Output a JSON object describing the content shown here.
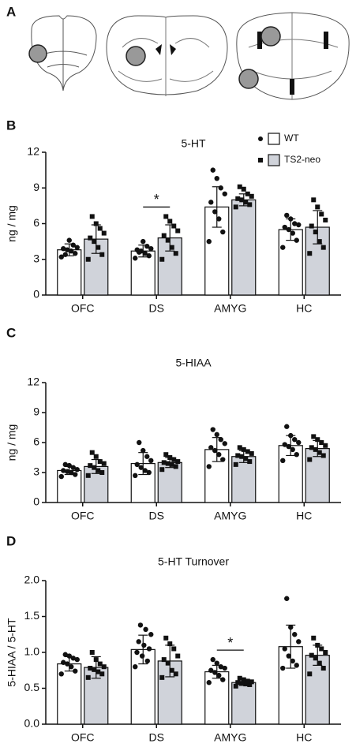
{
  "panel_a": {
    "label": "A"
  },
  "chart_data": [
    {
      "type": "bar",
      "panel": "B",
      "title": "5-HT",
      "ylabel": "ng / mg",
      "categories": [
        "OFC",
        "DS",
        "AMYG",
        "HC"
      ],
      "ylim": [
        0,
        12
      ],
      "yticks": [
        0,
        3,
        6,
        9,
        12
      ],
      "legend": "upper right",
      "series": [
        {
          "name": "WT",
          "color": "#ffffff",
          "marker": "circle",
          "values": [
            3.8,
            3.7,
            7.4,
            5.5
          ],
          "errors": [
            0.5,
            0.5,
            1.7,
            0.9
          ],
          "points": [
            [
              3.2,
              3.5,
              3.7,
              3.8,
              3.9,
              4.0,
              4.2,
              4.6,
              3.4
            ],
            [
              3.1,
              3.3,
              3.5,
              3.7,
              3.8,
              3.9,
              4.1,
              4.5,
              3.6
            ],
            [
              4.5,
              5.3,
              6.4,
              7.0,
              7.8,
              8.5,
              9.0,
              9.8,
              10.5
            ],
            [
              4.0,
              4.6,
              5.2,
              5.5,
              5.7,
              5.9,
              6.0,
              6.4,
              6.7
            ]
          ]
        },
        {
          "name": "TS2-neo",
          "color": "#d0d3da",
          "marker": "square",
          "values": [
            4.7,
            4.8,
            8.0,
            5.7
          ],
          "errors": [
            1.2,
            1.1,
            0.5,
            1.4
          ],
          "points": [
            [
              3.0,
              3.4,
              4.0,
              4.5,
              4.8,
              5.2,
              5.6,
              6.0,
              6.6
            ],
            [
              3.0,
              3.5,
              4.0,
              4.6,
              5.0,
              5.4,
              5.8,
              6.2,
              6.6
            ],
            [
              7.4,
              7.6,
              7.8,
              8.0,
              8.1,
              8.3,
              8.5,
              8.9,
              9.1
            ],
            [
              3.5,
              4.0,
              4.5,
              5.3,
              5.8,
              6.3,
              6.8,
              7.4,
              8.0
            ]
          ]
        }
      ],
      "annotations": [
        {
          "text": "*",
          "category": 1
        }
      ]
    },
    {
      "type": "bar",
      "panel": "C",
      "title": "5-HIAA",
      "ylabel": "ng / mg",
      "categories": [
        "OFC",
        "DS",
        "AMYG",
        "HC"
      ],
      "ylim": [
        0,
        12
      ],
      "yticks": [
        0,
        3,
        6,
        9,
        12
      ],
      "series": [
        {
          "color": "#ffffff",
          "marker": "circle",
          "values": [
            3.2,
            3.9,
            5.3,
            5.7
          ],
          "errors": [
            0.4,
            1.1,
            1.2,
            1.0
          ],
          "points": [
            [
              2.6,
              2.8,
              3.0,
              3.1,
              3.2,
              3.3,
              3.5,
              3.7,
              3.8
            ],
            [
              2.7,
              3.0,
              3.2,
              3.5,
              3.8,
              4.2,
              4.6,
              5.2,
              6.0
            ],
            [
              3.6,
              4.3,
              4.8,
              5.2,
              5.5,
              5.9,
              6.3,
              6.8,
              7.3
            ],
            [
              4.2,
              4.8,
              5.3,
              5.6,
              5.8,
              6.0,
              6.3,
              6.7,
              7.6
            ]
          ]
        },
        {
          "color": "#d0d3da",
          "marker": "square",
          "values": [
            3.6,
            4.0,
            4.6,
            5.4
          ],
          "errors": [
            0.7,
            0.5,
            0.6,
            0.8
          ],
          "points": [
            [
              2.7,
              3.0,
              3.2,
              3.5,
              3.7,
              3.9,
              4.1,
              4.6,
              5.0
            ],
            [
              3.3,
              3.6,
              3.8,
              3.9,
              4.0,
              4.1,
              4.3,
              4.5,
              4.8
            ],
            [
              3.8,
              4.1,
              4.4,
              4.6,
              4.7,
              4.9,
              5.1,
              5.3,
              5.5
            ],
            [
              4.3,
              4.7,
              5.0,
              5.3,
              5.5,
              5.7,
              6.0,
              6.3,
              6.6
            ]
          ]
        }
      ]
    },
    {
      "type": "bar",
      "panel": "D",
      "title": "5-HT Turnover",
      "ylabel": "5-HIAA / 5-HT",
      "categories": [
        "OFC",
        "DS",
        "AMYG",
        "HC"
      ],
      "ylim": [
        0,
        2
      ],
      "yticks": [
        {
          "value": 0,
          "label": "0.0"
        },
        0.5,
        {
          "value": 1,
          "label": "1.0"
        },
        1.5,
        {
          "value": 2,
          "label": "2.0"
        }
      ],
      "series": [
        {
          "color": "#ffffff",
          "marker": "circle",
          "values": [
            0.84,
            1.04,
            0.73,
            1.08
          ],
          "errors": [
            0.1,
            0.2,
            0.09,
            0.3
          ],
          "points": [
            [
              0.7,
              0.74,
              0.8,
              0.84,
              0.86,
              0.9,
              0.92,
              0.95,
              0.97
            ],
            [
              0.8,
              0.88,
              0.95,
              1.0,
              1.05,
              1.1,
              1.15,
              1.25,
              1.32,
              1.38
            ],
            [
              0.58,
              0.62,
              0.68,
              0.72,
              0.75,
              0.78,
              0.8,
              0.85,
              0.9
            ],
            [
              0.78,
              0.82,
              0.88,
              0.95,
              1.05,
              1.15,
              1.25,
              1.35,
              1.75
            ]
          ]
        },
        {
          "color": "#d0d3da",
          "marker": "square",
          "values": [
            0.79,
            0.88,
            0.58,
            0.96
          ],
          "errors": [
            0.15,
            0.22,
            0.04,
            0.14
          ],
          "points": [
            [
              0.65,
              0.7,
              0.73,
              0.76,
              0.78,
              0.8,
              0.84,
              0.9,
              1.0
            ],
            [
              0.65,
              0.7,
              0.75,
              0.85,
              0.9,
              0.95,
              1.05,
              1.12,
              1.2
            ],
            [
              0.53,
              0.55,
              0.56,
              0.57,
              0.58,
              0.59,
              0.6,
              0.62,
              0.64
            ],
            [
              0.7,
              0.78,
              0.85,
              0.92,
              0.96,
              1.0,
              1.05,
              1.1,
              1.2
            ]
          ]
        }
      ],
      "annotations": [
        {
          "text": "*",
          "category": 2
        }
      ]
    }
  ]
}
